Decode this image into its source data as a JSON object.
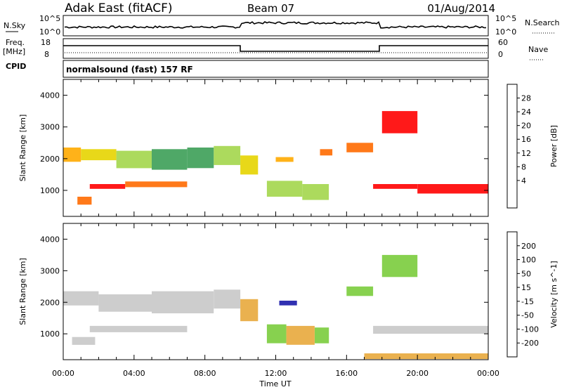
{
  "header": {
    "site": "Adak East (fitACF)",
    "beam": "Beam 07",
    "date": "01/Aug/2014"
  },
  "top_panels": {
    "nsky_label": "N.Sky",
    "nsky_ticks": [
      "10^5",
      "10^0"
    ],
    "nsearch_label": "N.Search",
    "nsearch_ticks": [
      "10^5",
      "10^0"
    ],
    "freq_label_1": "Freq.",
    "freq_label_2": "[MHz]",
    "freq_ticks": [
      "18",
      "8"
    ],
    "nave_label": "Nave",
    "nave_ticks": [
      "60",
      "0"
    ],
    "cpid_label": "CPID",
    "cpid_text": "normalsound (fast) 157 RF"
  },
  "chart_data": [
    {
      "type": "heatmap",
      "title": "",
      "ylabel": "Slant Range [km]",
      "xlabel": "Time UT",
      "yticks": [
        "4000",
        "3000",
        "2000",
        "1000"
      ],
      "ylim": [
        180,
        4500
      ],
      "x_tick_labels": [
        "00:00",
        "04:00",
        "08:00",
        "12:00",
        "16:00",
        "20:00",
        "00:00"
      ],
      "colorbar_label": "Power [dB]",
      "colorbar_ticks": [
        "28",
        "24",
        "20",
        "16",
        "12",
        "8",
        "4"
      ],
      "colors": [
        "#ff0000",
        "#ff6a00",
        "#ffaa00",
        "#e6d400",
        "#a3d64b",
        "#3c9f56",
        "#2e6e9e",
        "#1e3cc8",
        "#0000ff"
      ],
      "bands": [
        {
          "t0": 0.0,
          "t1": 1.0,
          "r0": 1900,
          "r1": 2350,
          "level": 2
        },
        {
          "t0": 1.0,
          "t1": 3.0,
          "r0": 1950,
          "r1": 2300,
          "level": 3
        },
        {
          "t0": 3.0,
          "t1": 5.0,
          "r0": 1700,
          "r1": 2250,
          "level": 4
        },
        {
          "t0": 5.0,
          "t1": 7.0,
          "r0": 1650,
          "r1": 2300,
          "level": 5
        },
        {
          "t0": 7.0,
          "t1": 8.5,
          "r0": 1700,
          "r1": 2350,
          "level": 5
        },
        {
          "t0": 8.5,
          "t1": 10.0,
          "r0": 1800,
          "r1": 2400,
          "level": 4
        },
        {
          "t0": 10.0,
          "t1": 11.0,
          "r0": 1500,
          "r1": 2100,
          "level": 3
        },
        {
          "t0": 11.5,
          "t1": 13.5,
          "r0": 800,
          "r1": 1300,
          "level": 4
        },
        {
          "t0": 13.5,
          "t1": 15.0,
          "r0": 700,
          "r1": 1200,
          "level": 4
        },
        {
          "t0": 0.8,
          "t1": 1.6,
          "r0": 550,
          "r1": 800,
          "level": 1
        },
        {
          "t0": 1.5,
          "t1": 3.5,
          "r0": 1050,
          "r1": 1200,
          "level": 0
        },
        {
          "t0": 3.5,
          "t1": 7.0,
          "r0": 1100,
          "r1": 1280,
          "level": 1
        },
        {
          "t0": 12.0,
          "t1": 13.0,
          "r0": 1900,
          "r1": 2050,
          "level": 2
        },
        {
          "t0": 14.5,
          "t1": 15.2,
          "r0": 2100,
          "r1": 2300,
          "level": 1
        },
        {
          "t0": 16.0,
          "t1": 17.5,
          "r0": 2200,
          "r1": 2500,
          "level": 1
        },
        {
          "t0": 17.5,
          "t1": 20.0,
          "r0": 1050,
          "r1": 1200,
          "level": 0
        },
        {
          "t0": 20.0,
          "t1": 24.0,
          "r0": 900,
          "r1": 1200,
          "level": 0
        },
        {
          "t0": 18.0,
          "t1": 20.0,
          "r0": 2800,
          "r1": 3500,
          "level": 0
        }
      ]
    },
    {
      "type": "heatmap",
      "title": "",
      "ylabel": "Slant Range [km]",
      "xlabel": "Time UT",
      "yticks": [
        "4000",
        "3000",
        "2000",
        "1000"
      ],
      "ylim": [
        180,
        4500
      ],
      "x_tick_labels": [
        "00:00",
        "04:00",
        "08:00",
        "12:00",
        "16:00",
        "20:00",
        "00:00"
      ],
      "colorbar_label": "Velocity [m s^-1]",
      "colorbar_ticks": [
        "200",
        "100",
        "50",
        "15",
        "-15",
        "-50",
        "-100",
        "-200"
      ],
      "colors": [
        "#1a1aa8",
        "#2a5fb8",
        "#2e7a3c",
        "#7acc3c",
        "#c8c8c8",
        "#e8a83c",
        "#ff7a00",
        "#ff3c00",
        "#ff0000"
      ],
      "bands": [
        {
          "t0": 0.0,
          "t1": 2.0,
          "r0": 1900,
          "r1": 2350,
          "level": 4
        },
        {
          "t0": 2.0,
          "t1": 5.0,
          "r0": 1700,
          "r1": 2250,
          "level": 4
        },
        {
          "t0": 5.0,
          "t1": 8.5,
          "r0": 1650,
          "r1": 2350,
          "level": 4
        },
        {
          "t0": 8.5,
          "t1": 10.0,
          "r0": 1800,
          "r1": 2400,
          "level": 4
        },
        {
          "t0": 10.0,
          "t1": 11.0,
          "r0": 1400,
          "r1": 2100,
          "level": 5
        },
        {
          "t0": 11.5,
          "t1": 12.6,
          "r0": 700,
          "r1": 1300,
          "level": 3
        },
        {
          "t0": 12.6,
          "t1": 14.2,
          "r0": 650,
          "r1": 1250,
          "level": 5
        },
        {
          "t0": 14.2,
          "t1": 15.0,
          "r0": 700,
          "r1": 1200,
          "level": 3
        },
        {
          "t0": 12.2,
          "t1": 13.2,
          "r0": 1900,
          "r1": 2050,
          "level": 0
        },
        {
          "t0": 0.5,
          "t1": 1.8,
          "r0": 650,
          "r1": 900,
          "level": 4
        },
        {
          "t0": 1.5,
          "t1": 7.0,
          "r0": 1050,
          "r1": 1250,
          "level": 4
        },
        {
          "t0": 16.0,
          "t1": 17.5,
          "r0": 2200,
          "r1": 2500,
          "level": 3
        },
        {
          "t0": 17.5,
          "t1": 24.0,
          "r0": 1000,
          "r1": 1250,
          "level": 4
        },
        {
          "t0": 17.0,
          "t1": 24.0,
          "r0": 200,
          "r1": 380,
          "level": 5
        },
        {
          "t0": 18.0,
          "t1": 20.0,
          "r0": 2800,
          "r1": 3500,
          "level": 3
        }
      ]
    }
  ]
}
